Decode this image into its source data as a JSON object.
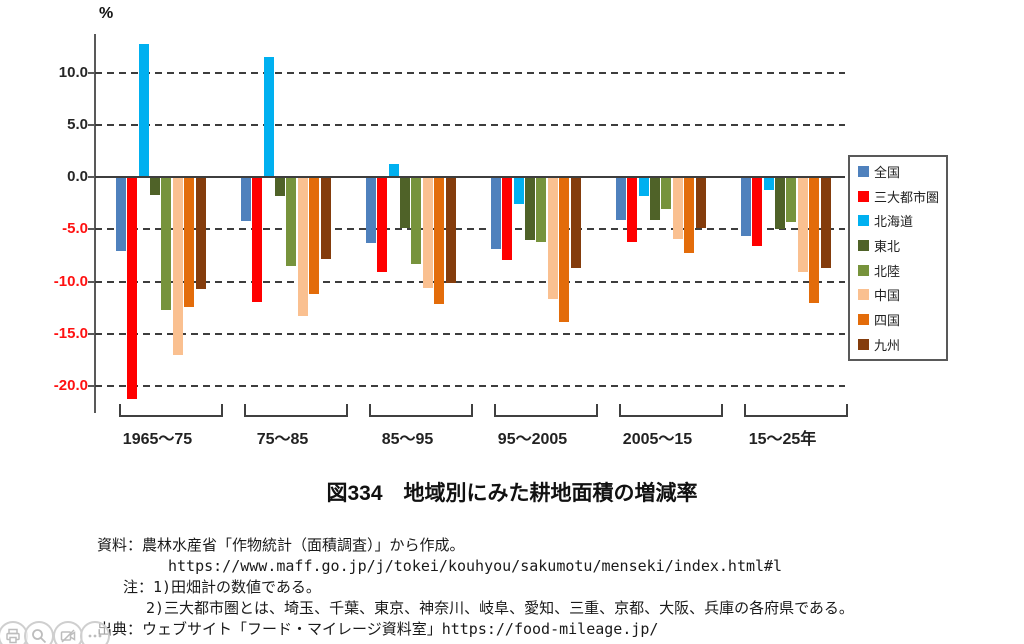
{
  "chart_data": {
    "type": "bar",
    "title": "図334　地域別にみた耕地面積の増減率",
    "unit_label": "%",
    "categories": [
      "1965～75",
      "75～85",
      "85～95",
      "95～2005",
      "2005～15",
      "15～25年"
    ],
    "series": [
      {
        "name": "全国",
        "color": "#4F81BD",
        "values": [
          -7.1,
          -4.2,
          -6.3,
          -6.9,
          -4.1,
          -5.6
        ]
      },
      {
        "name": "三大都市圏",
        "color": "#FF0000",
        "values": [
          -21.2,
          -12.0,
          -9.1,
          -7.9,
          -6.2,
          -6.6
        ]
      },
      {
        "name": "北海道",
        "color": "#00B0F0",
        "values": [
          12.7,
          11.5,
          1.2,
          -2.6,
          -1.8,
          -1.2
        ]
      },
      {
        "name": "東北",
        "color": "#4F6228",
        "values": [
          -1.7,
          -1.8,
          -4.9,
          -6.0,
          -4.1,
          -5.0
        ]
      },
      {
        "name": "北陸",
        "color": "#77933C",
        "values": [
          -12.7,
          -8.5,
          -8.3,
          -6.2,
          -3.1,
          -4.3
        ]
      },
      {
        "name": "中国",
        "color": "#FAC090",
        "values": [
          -17.0,
          -13.3,
          -10.6,
          -11.7,
          -5.9,
          -9.1
        ]
      },
      {
        "name": "四国",
        "color": "#E36C0A",
        "values": [
          -12.4,
          -11.2,
          -12.2,
          -13.9,
          -7.3,
          -12.1
        ]
      },
      {
        "name": "九州",
        "color": "#843C0C",
        "values": [
          -10.7,
          -7.8,
          -10.1,
          -8.7,
          -4.9,
          -8.7
        ]
      }
    ],
    "y_ticks": [
      {
        "value": 10.0,
        "label": "10.0"
      },
      {
        "value": 5.0,
        "label": "5.0"
      },
      {
        "value": 0.0,
        "label": "0.0"
      },
      {
        "value": -5.0,
        "label": "-5.0"
      },
      {
        "value": -10.0,
        "label": "-10.0"
      },
      {
        "value": -15.0,
        "label": "-15.0"
      },
      {
        "value": -20.0,
        "label": "-20.0"
      }
    ],
    "ylim": [
      -22.5,
      13.6
    ],
    "grid": "horizontal-dashed",
    "legend_position": "right",
    "negative_tick_color": "#FF1111",
    "positive_tick_color": "#262626"
  },
  "notes": {
    "source_line": "資料：農林水産省「作物統計（面積調査）」から作成。",
    "source_url_line": "https://www.maff.go.jp/j/tokei/kouhyou/sakumotu/menseki/index.html#l",
    "note1_line": "注：1)田畑計の数値である。",
    "note2_line": "2)三大都市圏とは、埼玉、千葉、東京、神奈川、岐阜、愛知、三重、京都、大阪、兵庫の各府県である。",
    "citation_line": "出典：ウェブサイト「フード・マイレージ資料室」https://food-mileage.jp/"
  },
  "corner_icons": [
    {
      "name": "print-icon"
    },
    {
      "name": "zoom-icon"
    },
    {
      "name": "media-icon"
    },
    {
      "name": "more-icon"
    }
  ]
}
